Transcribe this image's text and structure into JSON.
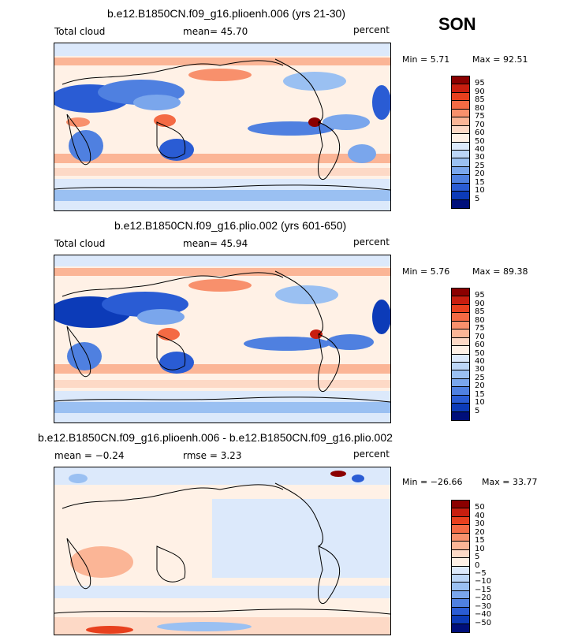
{
  "season": "SON",
  "chart_data": [
    {
      "type": "heatmap",
      "title": "b.e12.B1850CN.f09_g16.plioenh.006 (yrs 21-30)",
      "left_label": "Total cloud",
      "center_label": "mean=  45.70",
      "units": "percent",
      "min_label": "Min =    5.71",
      "max_label": "Max =  92.51",
      "colorbar_levels": [
        "95",
        "90",
        "85",
        "80",
        "75",
        "70",
        "60",
        "50",
        "40",
        "30",
        "25",
        "20",
        "15",
        "10",
        "5"
      ],
      "colorbar_colors": [
        "#8b0000",
        "#c81e0f",
        "#e8401e",
        "#f46a44",
        "#f8906c",
        "#fbb596",
        "#fdd9c6",
        "#fff1e6",
        "#dce9fb",
        "#bcd6f7",
        "#9ac0f2",
        "#7aa6ec",
        "#4f80e0",
        "#2a5cd4",
        "#0c3bb8",
        "#000f7a"
      ],
      "mean_value": 45.7,
      "min_value": 5.71,
      "max_value": 92.51
    },
    {
      "type": "heatmap",
      "title": "b.e12.B1850CN.f09_g16.plio.002 (yrs 601-650)",
      "left_label": "Total cloud",
      "center_label": "mean=  45.94",
      "units": "percent",
      "min_label": "Min =    5.76",
      "max_label": "Max =  89.38",
      "colorbar_levels": [
        "95",
        "90",
        "85",
        "80",
        "75",
        "70",
        "60",
        "50",
        "40",
        "30",
        "25",
        "20",
        "15",
        "10",
        "5"
      ],
      "colorbar_colors": [
        "#8b0000",
        "#c81e0f",
        "#e8401e",
        "#f46a44",
        "#f8906c",
        "#fbb596",
        "#fdd9c6",
        "#fff1e6",
        "#dce9fb",
        "#bcd6f7",
        "#9ac0f2",
        "#7aa6ec",
        "#4f80e0",
        "#2a5cd4",
        "#0c3bb8",
        "#000f7a"
      ],
      "mean_value": 45.94,
      "min_value": 5.76,
      "max_value": 89.38
    },
    {
      "type": "heatmap",
      "title": "b.e12.B1850CN.f09_g16.plioenh.006 - b.e12.B1850CN.f09_g16.plio.002",
      "left_label": "mean =  −0.24",
      "center_label": "rmse =    3.23",
      "units": "percent",
      "min_label": "Min = −26.66",
      "max_label": "Max =  33.77",
      "colorbar_levels": [
        "50",
        "40",
        "30",
        "20",
        "15",
        "10",
        "5",
        "0",
        "−5",
        "−10",
        "−15",
        "−20",
        "−30",
        "−40",
        "−50"
      ],
      "colorbar_colors": [
        "#8b0000",
        "#c81e0f",
        "#e8401e",
        "#f46a44",
        "#f8906c",
        "#fbb596",
        "#fdd9c6",
        "#fff1e6",
        "#dce9fb",
        "#bcd6f7",
        "#9ac0f2",
        "#7aa6ec",
        "#4f80e0",
        "#2a5cd4",
        "#0c3bb8",
        "#000f7a"
      ],
      "mean_value": -0.24,
      "rmse_value": 3.23,
      "min_value": -26.66,
      "max_value": 33.77
    }
  ]
}
